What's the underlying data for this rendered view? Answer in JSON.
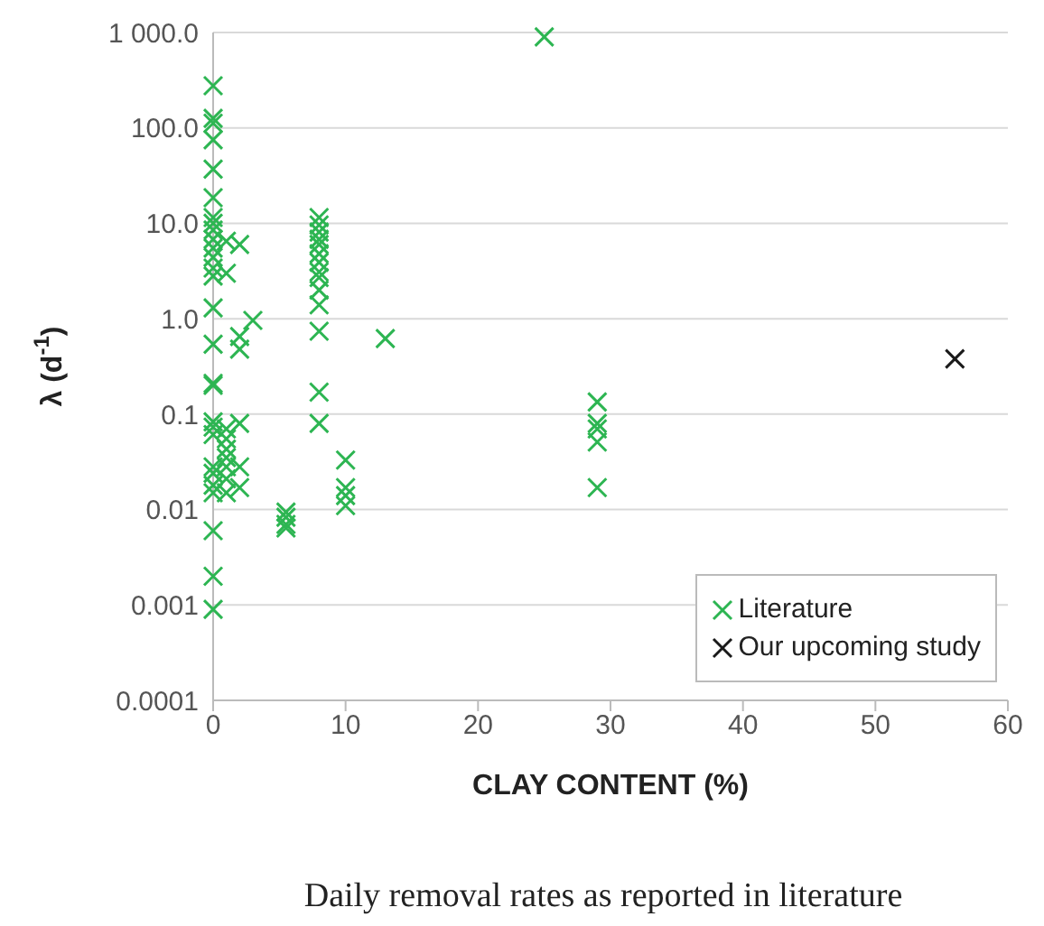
{
  "chart_data": {
    "type": "scatter",
    "xlabel": "CLAY CONTENT (%)",
    "ylabel": "λ (d$^{-1}$)",
    "log": "y",
    "grid": "y",
    "legend": "bottom right",
    "marker": "cross",
    "xlim": [
      0,
      60
    ],
    "xticks": [
      0,
      10,
      20,
      30,
      40,
      50,
      60
    ],
    "ylim": [
      0.0001,
      1000
    ],
    "yticks": [
      {
        "value": 0.0001,
        "label": "0.0001"
      },
      {
        "value": 0.001,
        "label": "0.001"
      },
      {
        "value": 0.01,
        "label": "0.01"
      },
      {
        "value": 0.1,
        "label": "0.1"
      },
      {
        "value": 1,
        "label": "1.0"
      },
      {
        "value": 10,
        "label": "10.0"
      },
      {
        "value": 100,
        "label": "100.0"
      },
      {
        "value": 1000,
        "label": "1 000.0"
      }
    ],
    "series": [
      {
        "name": "Literature",
        "color": "#2db552",
        "x": [
          0,
          0,
          0,
          0,
          0,
          0,
          0,
          0,
          0,
          0,
          0,
          0,
          0,
          0,
          0,
          0,
          0,
          0,
          0,
          0,
          0,
          0,
          0,
          0,
          0,
          0,
          0,
          0,
          1,
          1,
          1,
          1,
          1,
          1,
          1,
          1,
          1,
          2,
          2,
          2,
          2,
          2,
          2,
          3,
          5.5,
          5.5,
          5.5,
          5.5,
          8,
          8,
          8,
          8,
          8,
          8,
          8,
          8,
          8,
          8,
          8,
          8,
          8,
          8,
          10,
          10,
          10,
          10,
          13,
          25,
          29,
          29,
          29,
          29,
          29
        ],
        "values": [
          277,
          126,
          112,
          75,
          37,
          18.6,
          11.5,
          10,
          8.5,
          6.8,
          5.5,
          4.4,
          3.4,
          2.8,
          1.3,
          0.54,
          0.21,
          0.2,
          0.083,
          0.073,
          0.061,
          0.028,
          0.024,
          0.018,
          0.015,
          0.006,
          0.002,
          0.0009,
          6.5,
          3,
          0.07,
          0.055,
          0.043,
          0.035,
          0.028,
          0.021,
          0.015,
          6,
          0.65,
          0.48,
          0.08,
          0.028,
          0.017,
          0.96,
          0.0094,
          0.0083,
          0.007,
          0.0064,
          11.5,
          9.6,
          8.1,
          6.8,
          6,
          4.8,
          3.9,
          3.1,
          2.7,
          2,
          1.4,
          0.74,
          0.17,
          0.08,
          0.033,
          0.017,
          0.014,
          0.011,
          0.62,
          900,
          0.134,
          0.08,
          0.07,
          0.051,
          0.017
        ]
      },
      {
        "name": "Our upcoming study",
        "color": "#1a1a1a",
        "x": [
          56
        ],
        "values": [
          0.38
        ]
      }
    ],
    "annotations": [
      "Daily removal rates as reported in literature"
    ]
  }
}
